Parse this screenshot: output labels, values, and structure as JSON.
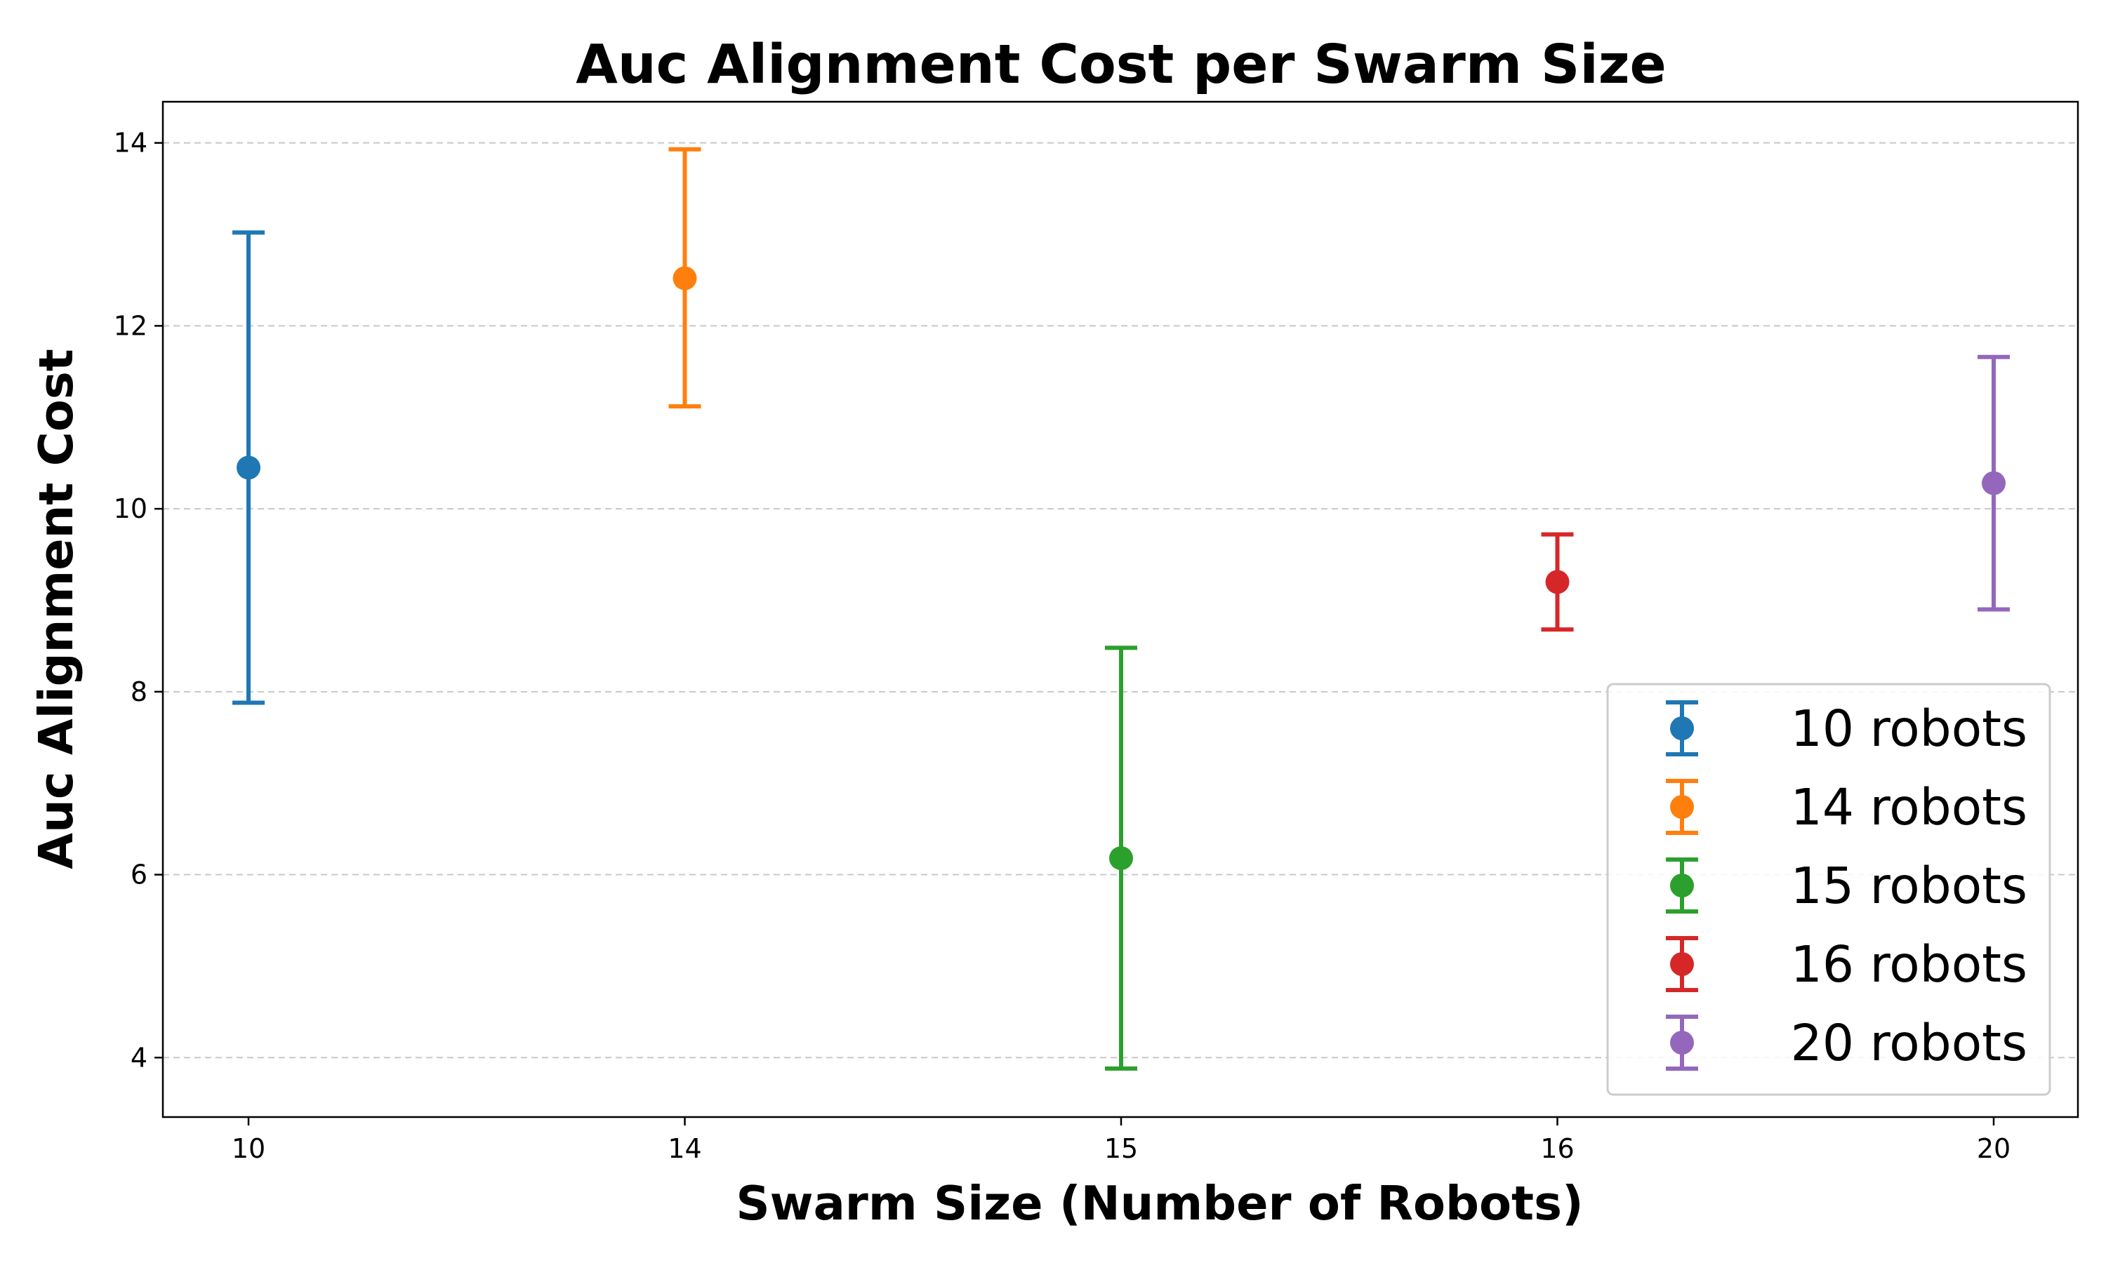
{
  "chart_data": {
    "type": "scatter",
    "title": "Auc Alignment Cost per Swarm Size",
    "xlabel": "Swarm Size (Number of Robots)",
    "ylabel": "Auc Alignment Cost",
    "categories": [
      "10",
      "14",
      "15",
      "16",
      "20"
    ],
    "ylim": [
      3.35,
      14.45
    ],
    "yticks": [
      4,
      6,
      8,
      10,
      12,
      14
    ],
    "grid": "y-dashed",
    "legend_position": "lower-right",
    "series": [
      {
        "name": "10 robots",
        "x": "10",
        "mean": 10.45,
        "lower": 7.88,
        "upper": 13.02,
        "color": "#1f77b4"
      },
      {
        "name": "14 robots",
        "x": "14",
        "mean": 12.52,
        "lower": 11.12,
        "upper": 13.93,
        "color": "#ff7f0e"
      },
      {
        "name": "15 robots",
        "x": "15",
        "mean": 6.18,
        "lower": 3.88,
        "upper": 8.48,
        "color": "#2ca02c"
      },
      {
        "name": "16 robots",
        "x": "16",
        "mean": 9.2,
        "lower": 8.68,
        "upper": 9.72,
        "color": "#d62728"
      },
      {
        "name": "20 robots",
        "x": "20",
        "mean": 10.28,
        "lower": 8.9,
        "upper": 11.66,
        "color": "#9467bd"
      }
    ]
  }
}
